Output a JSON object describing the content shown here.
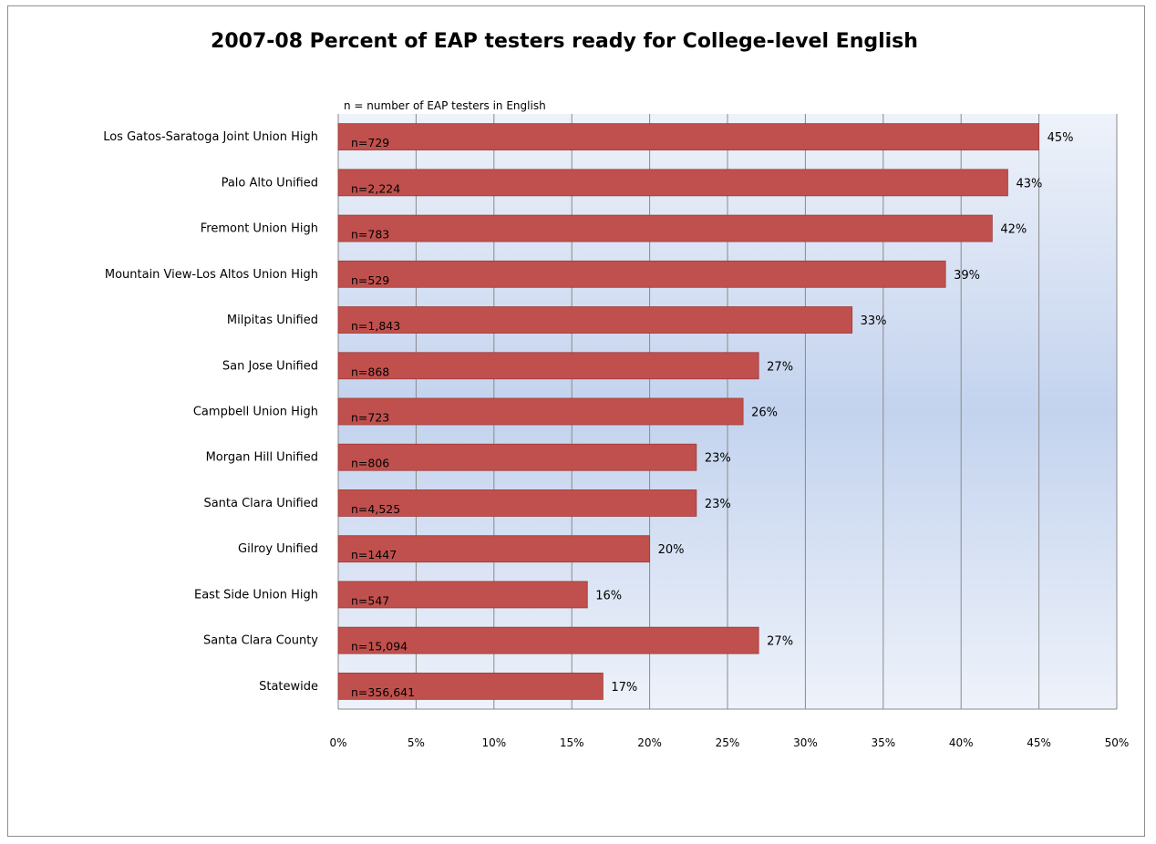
{
  "chart_data": {
    "type": "bar",
    "orientation": "horizontal",
    "title": "2007-08 Percent of EAP testers ready for College-level English",
    "subtitle": "n = number of EAP testers in English",
    "categories": [
      "Los Gatos-Saratoga Joint Union  High",
      "Palo Alto Unified",
      "Fremont Union High",
      "Mountain View-Los Altos Union  High",
      "Milpitas Unified",
      "San Jose Unified",
      "Campbell Union  High",
      "Morgan Hill Unified",
      "Santa Clara Unified",
      "Gilroy Unified",
      "East Side Union High",
      "Santa Clara County",
      "Statewide"
    ],
    "values": [
      45,
      43,
      42,
      39,
      33,
      27,
      26,
      23,
      23,
      20,
      16,
      27,
      17
    ],
    "value_labels": [
      "45%",
      "43%",
      "42%",
      "39%",
      "33%",
      "27%",
      "26%",
      "23%",
      "23%",
      "20%",
      "16%",
      "27%",
      "17%"
    ],
    "n_labels": [
      "n=729",
      "n=2,224",
      "n=783",
      "n=529",
      "n=1,843",
      "n=868",
      "n=723",
      "n=806",
      "n=4,525",
      "n=1447",
      "n=547",
      "n=15,094",
      "n=356,641"
    ],
    "xlim": [
      0,
      50
    ],
    "x_ticks": [
      "0%",
      "5%",
      "10%",
      "15%",
      "20%",
      "25%",
      "30%",
      "35%",
      "40%",
      "45%",
      "50%"
    ],
    "grid": "vertical",
    "legend": "none",
    "colors": {
      "bar": "#c0504d",
      "bar_stroke": "#9e3b38",
      "gridline": "#8a8a8a",
      "plot_bg_light": "#eef2fa",
      "plot_bg_dark": "#c3d3ee"
    }
  }
}
